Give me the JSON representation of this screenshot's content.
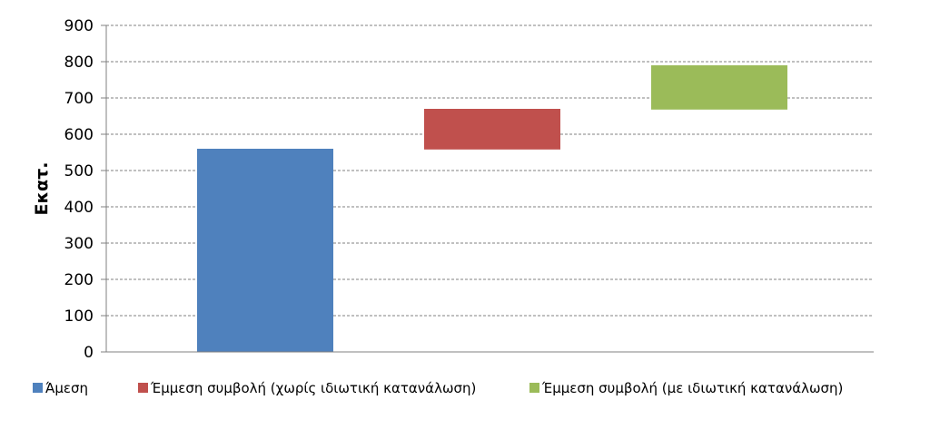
{
  "chart_data": {
    "type": "bar",
    "subtype": "waterfall",
    "ylabel": "Εκατ.",
    "ylim": [
      0,
      900
    ],
    "yticks": [
      0,
      100,
      200,
      300,
      400,
      500,
      600,
      700,
      800,
      900
    ],
    "grid": true,
    "legend_position": "bottom",
    "series": [
      {
        "name": "Άμεση",
        "base": 0,
        "top": 560,
        "value": 560,
        "color": "#4f81bd"
      },
      {
        "name": "Έμμεση συμβολή (χωρίς ιδιωτική κατανάλωση)",
        "base": 558,
        "top": 670,
        "value": 112,
        "color": "#c0504d"
      },
      {
        "name": "Έμμεση συμβολή (με ιδιωτική κατανάλωση)",
        "base": 668,
        "top": 790,
        "value": 122,
        "color": "#9bbb59"
      }
    ]
  }
}
